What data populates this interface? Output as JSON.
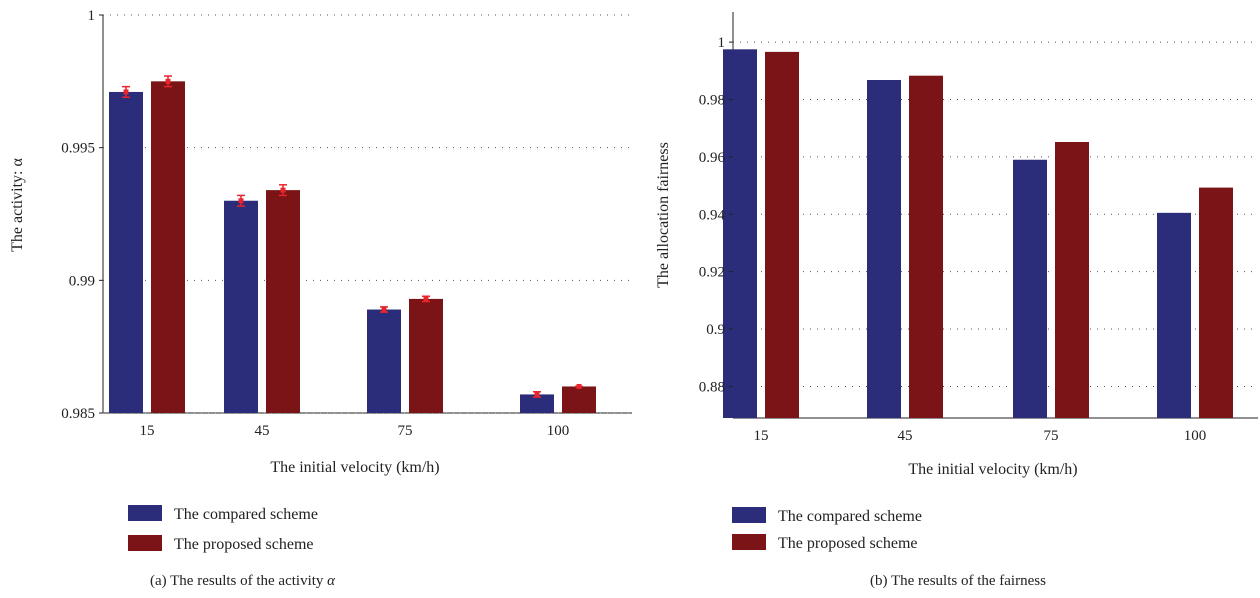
{
  "chart_data": [
    {
      "type": "bar",
      "categories": [
        "15",
        "45",
        "75",
        "100"
      ],
      "series": [
        {
          "name": "The compared scheme",
          "values": [
            0.9971,
            0.993,
            0.9889,
            0.9857
          ]
        },
        {
          "name": "The proposed scheme",
          "values": [
            0.9975,
            0.9934,
            0.9893,
            0.986
          ]
        }
      ],
      "error_bars": [
        {
          "series": "The compared scheme",
          "values": [
            0.9971,
            0.993,
            0.9889,
            0.9857
          ],
          "error": [
            0.0002,
            0.0002,
            0.0001,
            0.0001
          ]
        },
        {
          "series": "The proposed scheme",
          "values": [
            0.9975,
            0.9934,
            0.9893,
            0.986
          ],
          "error": [
            0.0002,
            0.0002,
            0.0001,
            0.0
          ]
        }
      ],
      "ylim": [
        0.985,
        1
      ],
      "yticks": [
        0.985,
        0.99,
        0.995,
        1
      ],
      "ytick_labels": [
        "0.985",
        "0.99",
        "0.995",
        "1"
      ],
      "xlabel": "The initial velocity (km/h)",
      "ylabel": "The activity: α",
      "caption_prefix": "(a)  The results of the activity ",
      "caption_symbol": "α",
      "legend_position": "bottom-left",
      "grid": true
    },
    {
      "type": "bar",
      "categories": [
        "15",
        "45",
        "75",
        "100"
      ],
      "series": [
        {
          "name": "The compared scheme",
          "values": [
            0.9975,
            0.9868,
            0.959,
            0.9405
          ]
        },
        {
          "name": "The proposed scheme",
          "values": [
            0.9966,
            0.9883,
            0.9652,
            0.9493
          ]
        }
      ],
      "ylim": [
        0.869,
        1.0105
      ],
      "yticks": [
        0.88,
        0.9,
        0.92,
        0.94,
        0.96,
        0.98,
        1
      ],
      "ytick_labels": [
        "0.88",
        "0.9",
        "0.92",
        "0.94",
        "0.96",
        "0.98",
        "1"
      ],
      "xlabel": "The initial velocity (km/h)",
      "ylabel": "The allocation fairness",
      "caption": "(b)  The results of the fairness",
      "legend_position": "bottom-left",
      "grid": true
    }
  ],
  "colors": {
    "compared": "#2b2d7b",
    "proposed": "#7a1416",
    "error": "#e8242c"
  }
}
